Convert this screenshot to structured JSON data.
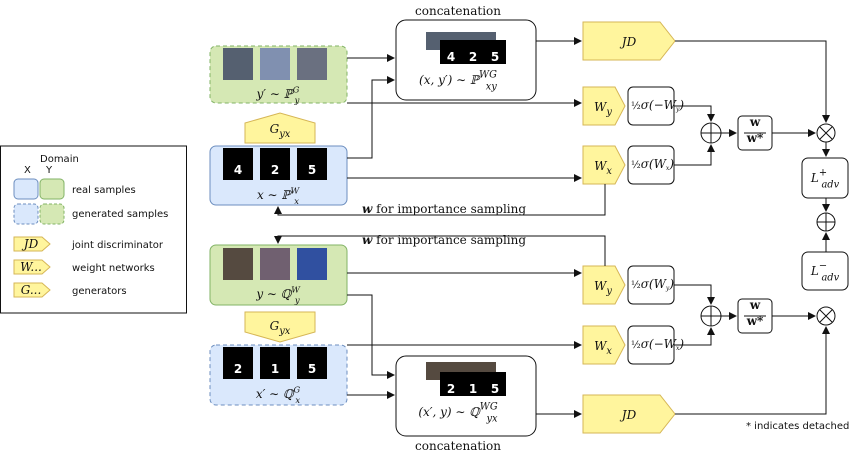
{
  "top": {
    "concat_label": "concatenation",
    "gen_y": {
      "base": "y′ ∼ ℙ",
      "sup": "G",
      "sub": "y"
    },
    "generator": {
      "base": "G",
      "sub": "yx"
    },
    "real_x": {
      "base": "x ∼ ℙ",
      "sup": "W",
      "sub": "x"
    },
    "real_digits": [
      "4",
      "2",
      "5"
    ],
    "concat_digits": [
      "4",
      "2",
      "5"
    ],
    "pair": {
      "base": "(x, y′) ∼ ℙ",
      "sup": "WG",
      "sub": "xy"
    },
    "jd": "JD",
    "wy": {
      "base": "W",
      "sub": "y"
    },
    "wy_act": {
      "coef": "½",
      "body": "σ(−W",
      "sub": "y",
      "close": ")"
    },
    "wx": {
      "base": "W",
      "sub": "x"
    },
    "wx_act": {
      "coef": "½",
      "body": "σ(W",
      "sub": "x",
      "close": ")"
    },
    "norm": {
      "num": "w",
      "den": "w*"
    },
    "loss": {
      "base": "L",
      "sup": "+",
      "sub": "adv"
    },
    "feedback": {
      "lead": "w",
      "rest": " for importance sampling"
    }
  },
  "bottom": {
    "concat_label": "concatenation",
    "real_y": {
      "base": "y ∼ ℚ",
      "sup": "W",
      "sub": "y"
    },
    "generator": {
      "base": "G",
      "sub": "yx"
    },
    "gen_x": {
      "base": "x′ ∼ ℚ",
      "sup": "G",
      "sub": "x"
    },
    "gen_digits": [
      "2",
      "1",
      "5"
    ],
    "concat_digits": [
      "2",
      "1",
      "5"
    ],
    "pair": {
      "base": "(x′, y) ∼ ℚ",
      "sup": "WG",
      "sub": "yx"
    },
    "jd": "JD",
    "wy": {
      "base": "W",
      "sub": "y"
    },
    "wy_act": {
      "coef": "½",
      "body": "σ(W",
      "sub": "y",
      "close": ")"
    },
    "wx": {
      "base": "W",
      "sub": "x"
    },
    "wx_act": {
      "coef": "½",
      "body": "σ(−W",
      "sub": "x",
      "close": ")"
    },
    "norm": {
      "num": "w",
      "den": "w*"
    },
    "loss": {
      "base": "L",
      "sup": "−",
      "sub": "adv"
    },
    "feedback": {
      "lead": "w",
      "rest": " for importance sampling"
    }
  },
  "legend": {
    "domain": "Domain",
    "x": "X",
    "y": "Y",
    "real": "real samples",
    "generated": "generated samples",
    "jd_icon": "JD",
    "jd": "joint discriminator",
    "w_icon": "W...",
    "w": "weight networks",
    "g_icon": "G...",
    "g": "generators"
  },
  "note": "* indicates detached"
}
